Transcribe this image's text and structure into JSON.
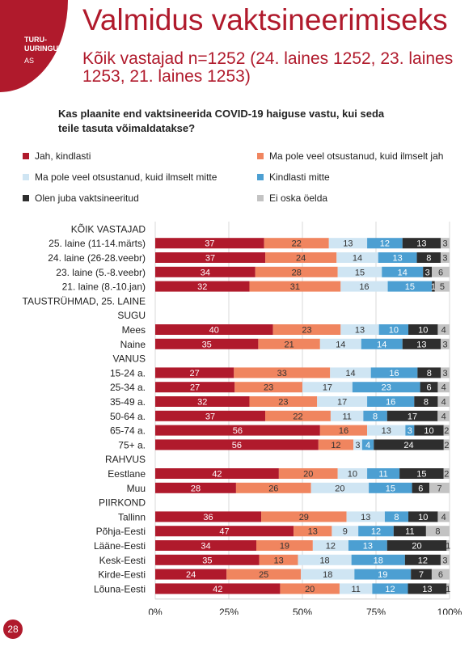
{
  "header": {
    "logo_line1": "TURU-",
    "logo_line2": "UURINGUTE",
    "logo_line3": "AS",
    "title": "Valmidus vaktsineerimiseks",
    "subtitle": "Kõik vastajad n=1252 (24. laines 1252, 23. laines 1253, 21. laines 1253)",
    "question": "Kas plaanite end vaktsineerida COVID-19 haiguse vastu, kui seda teile tasuta võimaldatakse?"
  },
  "page_number": "28",
  "chart_data": {
    "type": "bar",
    "orientation": "horizontal",
    "stacked": true,
    "percent_stacked": true,
    "x_ticks": [
      "0%",
      "25%",
      "50%",
      "75%",
      "100%"
    ],
    "xlim": [
      0,
      100
    ],
    "legend_position": "top",
    "series": [
      {
        "name": "Jah, kindlasti",
        "color": "#b01a2c"
      },
      {
        "name": "Ma pole veel otsustanud, kuid ilmselt jah",
        "color": "#f0855f"
      },
      {
        "name": "Ma pole veel otsustanud, kuid ilmselt mitte",
        "color": "#cfe5f3"
      },
      {
        "name": "Kindlasti mitte",
        "color": "#4c9fd2"
      },
      {
        "name": "Olen juba vaktsineeritud",
        "color": "#2e2e2e"
      },
      {
        "name": "Ei oska öelda",
        "color": "#c3c3c3"
      }
    ],
    "rows": [
      {
        "type": "header",
        "label": "KÕIK VASTAJAD"
      },
      {
        "type": "bar",
        "label": "25. laine (11-14.märts)",
        "values": [
          37,
          22,
          13,
          12,
          13,
          3
        ]
      },
      {
        "type": "bar",
        "label": "24. laine (26-28.veebr)",
        "values": [
          37,
          24,
          14,
          13,
          8,
          3
        ]
      },
      {
        "type": "bar",
        "label": "23. laine (5.-8.veebr)",
        "values": [
          34,
          28,
          15,
          14,
          3,
          6
        ]
      },
      {
        "type": "bar",
        "label": "21. laine (8.-10.jan)",
        "values": [
          32,
          31,
          16,
          15,
          1,
          5
        ]
      },
      {
        "type": "header",
        "label": "TAUSTRÜHMAD, 25. LAINE"
      },
      {
        "type": "header",
        "label": "SUGU"
      },
      {
        "type": "bar",
        "label": "Mees",
        "values": [
          40,
          23,
          13,
          10,
          10,
          4
        ]
      },
      {
        "type": "bar",
        "label": "Naine",
        "values": [
          35,
          21,
          14,
          14,
          13,
          3
        ]
      },
      {
        "type": "header",
        "label": "VANUS"
      },
      {
        "type": "bar",
        "label": "15-24 a.",
        "values": [
          27,
          33,
          14,
          16,
          8,
          3
        ]
      },
      {
        "type": "bar",
        "label": "25-34 a.",
        "values": [
          27,
          23,
          17,
          23,
          6,
          4
        ]
      },
      {
        "type": "bar",
        "label": "35-49 a.",
        "values": [
          32,
          23,
          17,
          16,
          8,
          4
        ]
      },
      {
        "type": "bar",
        "label": "50-64 a.",
        "values": [
          37,
          22,
          11,
          8,
          17,
          4
        ]
      },
      {
        "type": "bar",
        "label": "65-74 a.",
        "values": [
          56,
          16,
          13,
          3,
          10,
          2
        ]
      },
      {
        "type": "bar",
        "label": "75+ a.",
        "values": [
          56,
          12,
          3,
          4,
          24,
          2
        ]
      },
      {
        "type": "header",
        "label": "RAHVUS"
      },
      {
        "type": "bar",
        "label": "Eestlane",
        "values": [
          42,
          20,
          10,
          11,
          15,
          2
        ]
      },
      {
        "type": "bar",
        "label": "Muu",
        "values": [
          28,
          26,
          20,
          15,
          6,
          7
        ]
      },
      {
        "type": "header",
        "label": "PIIRKOND"
      },
      {
        "type": "bar",
        "label": "Tallinn",
        "values": [
          36,
          29,
          13,
          8,
          10,
          4
        ]
      },
      {
        "type": "bar",
        "label": "Põhja-Eesti",
        "values": [
          47,
          13,
          9,
          12,
          11,
          8
        ]
      },
      {
        "type": "bar",
        "label": "Lääne-Eesti",
        "values": [
          34,
          19,
          12,
          13,
          20,
          1
        ]
      },
      {
        "type": "bar",
        "label": "Kesk-Eesti",
        "values": [
          35,
          13,
          18,
          18,
          12,
          3
        ]
      },
      {
        "type": "bar",
        "label": "Kirde-Eesti",
        "values": [
          24,
          25,
          18,
          19,
          7,
          6
        ]
      },
      {
        "type": "bar",
        "label": "Lõuna-Eesti",
        "values": [
          42,
          20,
          11,
          12,
          13,
          1
        ]
      }
    ]
  }
}
